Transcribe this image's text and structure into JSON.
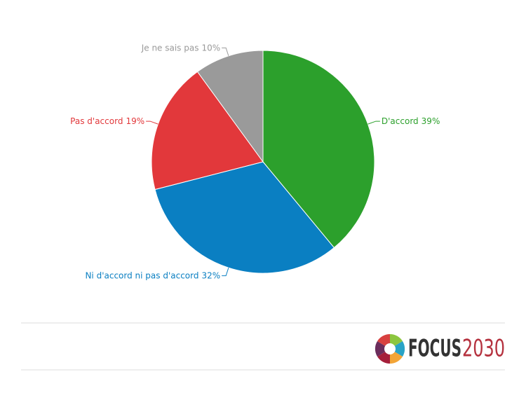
{
  "chart_data": {
    "type": "pie",
    "categories": [
      "D'accord",
      "Ni d'accord ni pas d'accord",
      "Pas d'accord",
      "Je ne sais pas"
    ],
    "values": [
      39,
      32,
      19,
      10
    ],
    "value_labels": [
      "39%",
      "32%",
      "19%",
      "10%"
    ],
    "colors": [
      "#2ca02c",
      "#0a7fc2",
      "#e2383b",
      "#9a9a9a"
    ]
  },
  "footer": {
    "logo_part1": "FOCUS",
    "logo_part2": "2030"
  }
}
